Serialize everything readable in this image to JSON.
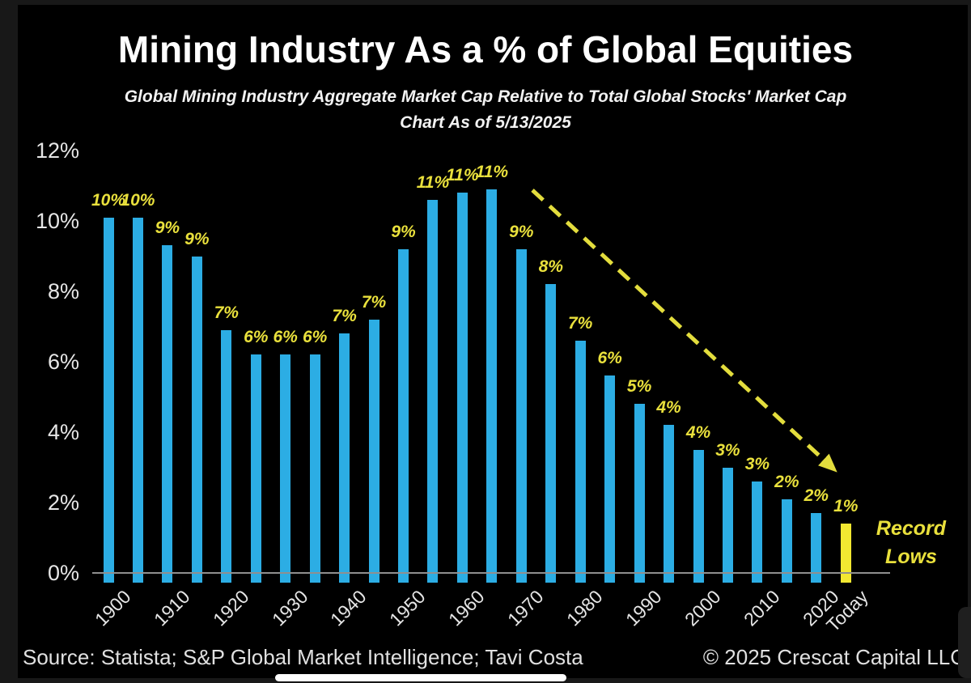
{
  "header": {
    "title": "Mining Industry As a % of Global Equities",
    "subtitle_line1": "Global Mining Industry Aggregate Market Cap Relative to Total Global Stocks' Market Cap",
    "subtitle_line2": "Chart As of 5/13/2025"
  },
  "footer": {
    "source": "Source: Statista; S&P Global Market Intelligence; Tavi Costa",
    "copyright": "© 2025 Crescat Capital LLC"
  },
  "annotations": {
    "record_lows_line1": "Record",
    "record_lows_line2": "Lows",
    "trend_arrow": "dashed declining arrow from 11% peak down to the Today bar"
  },
  "colors": {
    "bar": "#2cade4",
    "highlight_bar": "#f2e831",
    "value_label": "#e9e03c",
    "arrow": "#e3dd3d",
    "axis_line": "#8f8f8f",
    "tick_text": "#e6e6e6"
  },
  "chart_data": {
    "type": "bar",
    "title": "Mining Industry As a % of Global Equities",
    "subtitle": "Global Mining Industry Aggregate Market Cap Relative to Total Global Stocks' Market Cap — Chart As of 5/13/2025",
    "x": [
      "1900",
      "1905",
      "1910",
      "1915",
      "1920",
      "1925",
      "1930",
      "1935",
      "1940",
      "1945",
      "1950",
      "1955",
      "1960",
      "1965",
      "1970",
      "1975",
      "1980",
      "1985",
      "1990",
      "1995",
      "2000",
      "2005",
      "2010",
      "2015",
      "2020",
      "Today"
    ],
    "values": [
      10,
      10,
      9,
      9,
      7,
      6,
      6,
      6,
      7,
      7,
      9,
      11,
      11,
      11,
      9,
      8,
      7,
      6,
      5,
      4,
      4,
      3,
      3,
      2,
      2,
      1
    ],
    "labels": [
      "10%",
      "10%",
      "9%",
      "9%",
      "7%",
      "6%",
      "6%",
      "6%",
      "7%",
      "7%",
      "9%",
      "11%",
      "11%",
      "11%",
      "9%",
      "8%",
      "7%",
      "6%",
      "5%",
      "4%",
      "4%",
      "3%",
      "3%",
      "2%",
      "2%",
      "1%"
    ],
    "bar_heights_est_pct": [
      10.1,
      10.1,
      9.3,
      9.0,
      6.9,
      6.2,
      6.2,
      6.2,
      6.8,
      7.2,
      9.2,
      10.6,
      10.8,
      10.9,
      9.2,
      8.2,
      6.6,
      5.6,
      4.8,
      4.2,
      3.5,
      3.0,
      2.6,
      2.1,
      1.7,
      1.4
    ],
    "highlight_index": 25,
    "x_tick_labels": [
      "1900",
      "1910",
      "1920",
      "1930",
      "1940",
      "1950",
      "1960",
      "1970",
      "1980",
      "1990",
      "2000",
      "2010",
      "2020",
      "Today"
    ],
    "y_ticks": [
      "12%",
      "10%",
      "8%",
      "6%",
      "4%",
      "2%",
      "0%"
    ],
    "ylim": [
      0,
      12
    ],
    "ylabel": "",
    "xlabel": "",
    "grid": false,
    "legend": "none"
  }
}
